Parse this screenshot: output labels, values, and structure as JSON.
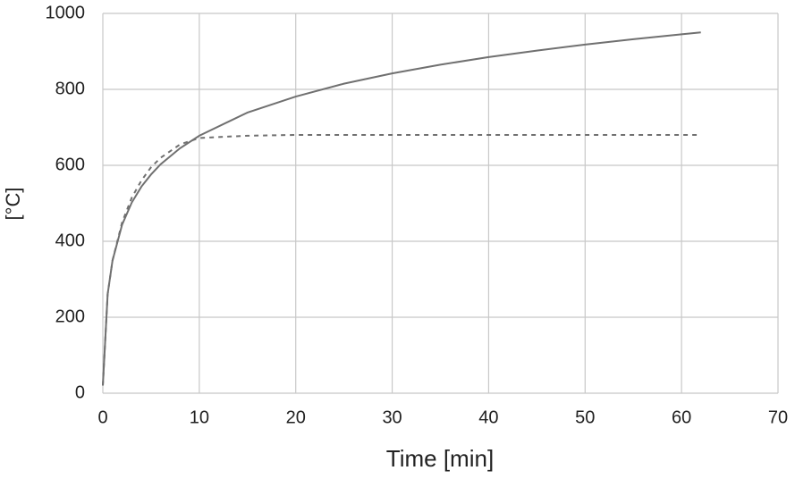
{
  "chart_data": {
    "type": "line",
    "x_label": "Time [min]",
    "y_label": "[°C]",
    "x": [
      0,
      0.5,
      1,
      2,
      3,
      4,
      5,
      6,
      8,
      10,
      15,
      20,
      25,
      30,
      35,
      40,
      45,
      50,
      55,
      60,
      62
    ],
    "series": [
      {
        "color": "#707070",
        "dash": "solid",
        "values": [
          20,
          261,
          349,
          444,
          502,
          544,
          576,
          603,
          645,
          678,
          739,
          781,
          815,
          842,
          865,
          885,
          902,
          918,
          932,
          945,
          950
        ]
      },
      {
        "color": "#707070",
        "dash": "dashed",
        "values": [
          20,
          261,
          349,
          450,
          515,
          560,
          595,
          620,
          655,
          672,
          678,
          680,
          680,
          680,
          680,
          680,
          680,
          680,
          680,
          680,
          680
        ]
      }
    ],
    "xlim": [
      0,
      70
    ],
    "xticks": [
      0,
      10,
      20,
      30,
      40,
      50,
      60,
      70
    ],
    "ylim": [
      0,
      1000
    ],
    "yticks": [
      0,
      200,
      400,
      600,
      800,
      1000
    ],
    "grid": true
  }
}
